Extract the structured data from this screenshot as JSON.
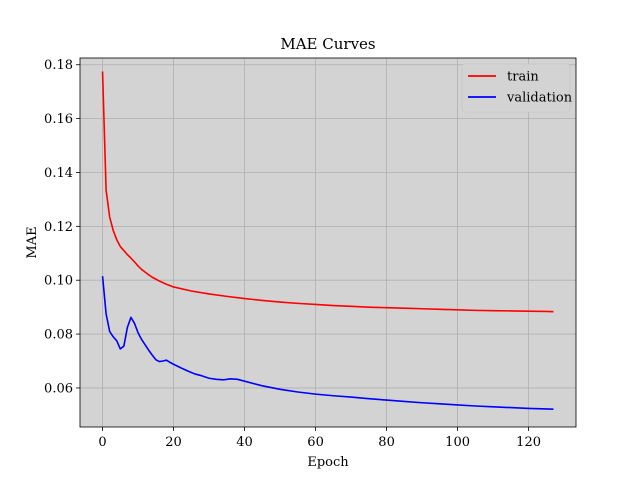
{
  "chart_data": {
    "type": "line",
    "title": "MAE Curves",
    "xlabel": "Epoch",
    "ylabel": "MAE",
    "xlim": [
      -6.35,
      133.35
    ],
    "ylim": [
      0.0455,
      0.1825
    ],
    "xticks": [
      0,
      20,
      40,
      60,
      80,
      100,
      120
    ],
    "yticks": [
      0.06,
      0.08,
      0.1,
      0.12,
      0.14,
      0.16,
      0.18
    ],
    "ytick_labels": [
      "0.06",
      "0.08",
      "0.10",
      "0.12",
      "0.14",
      "0.16",
      "0.18"
    ],
    "grid": true,
    "background": "#d3d3d3",
    "grid_color": "#b0b0b0",
    "legend_position": "top-right",
    "series": [
      {
        "name": "train",
        "color": "#ff0000",
        "x": [
          0,
          1,
          2,
          3,
          4,
          5,
          6,
          7,
          8,
          9,
          10,
          11,
          12,
          13,
          14,
          15,
          16,
          17,
          18,
          19,
          20,
          25,
          30,
          35,
          40,
          45,
          50,
          55,
          60,
          65,
          70,
          75,
          80,
          85,
          90,
          95,
          100,
          105,
          110,
          115,
          120,
          125,
          127
        ],
        "y": [
          0.1775,
          0.1335,
          0.1235,
          0.1185,
          0.115,
          0.1125,
          0.111,
          0.1095,
          0.1082,
          0.1068,
          0.1053,
          0.104,
          0.103,
          0.102,
          0.1011,
          0.1004,
          0.0997,
          0.0991,
          0.0985,
          0.098,
          0.0975,
          0.096,
          0.0949,
          0.094,
          0.0932,
          0.0925,
          0.0919,
          0.0914,
          0.091,
          0.0906,
          0.0903,
          0.09,
          0.0898,
          0.0896,
          0.0894,
          0.0892,
          0.089,
          0.0888,
          0.0887,
          0.0886,
          0.0885,
          0.0884,
          0.0883
        ]
      },
      {
        "name": "validation",
        "color": "#0000ff",
        "x": [
          0,
          1,
          2,
          3,
          4,
          5,
          6,
          7,
          8,
          9,
          10,
          11,
          12,
          13,
          14,
          15,
          16,
          17,
          18,
          19,
          20,
          22,
          24,
          26,
          28,
          30,
          32,
          34,
          36,
          38,
          40,
          45,
          50,
          55,
          60,
          65,
          70,
          75,
          80,
          85,
          90,
          95,
          100,
          105,
          110,
          115,
          120,
          125,
          127
        ],
        "y": [
          0.1015,
          0.0875,
          0.081,
          0.079,
          0.0775,
          0.0745,
          0.0755,
          0.0825,
          0.0862,
          0.084,
          0.0805,
          0.078,
          0.076,
          0.074,
          0.0722,
          0.0705,
          0.0698,
          0.07,
          0.0703,
          0.0695,
          0.0688,
          0.0675,
          0.0663,
          0.0652,
          0.0645,
          0.0636,
          0.0632,
          0.063,
          0.0634,
          0.0632,
          0.0625,
          0.0608,
          0.0595,
          0.0585,
          0.0577,
          0.0571,
          0.0566,
          0.056,
          0.0555,
          0.055,
          0.0545,
          0.0541,
          0.0537,
          0.0533,
          0.053,
          0.0527,
          0.0524,
          0.0522,
          0.0521
        ]
      }
    ]
  }
}
